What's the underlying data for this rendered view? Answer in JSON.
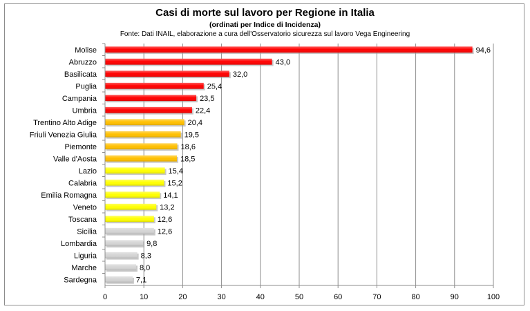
{
  "chart_data": {
    "type": "bar",
    "orientation": "horizontal",
    "title": "Casi di morte sul lavoro per Regione in Italia",
    "subtitle": "(ordinati per Indice di Incidenza)",
    "source": "Fonte: Dati INAIL, elaborazione a cura dell'Osservatorio sicurezza sul lavoro Vega Engineering",
    "xlim": [
      0,
      100
    ],
    "xticks": [
      0,
      10,
      20,
      30,
      40,
      50,
      60,
      70,
      80,
      90,
      100
    ],
    "grid": true,
    "bars": [
      {
        "category": "Molise",
        "value": 94.6,
        "label": "94,6",
        "color": "#ff0000"
      },
      {
        "category": "Abruzzo",
        "value": 43.0,
        "label": "43,0",
        "color": "#ff0000"
      },
      {
        "category": "Basilicata",
        "value": 32.0,
        "label": "32,0",
        "color": "#ff0000"
      },
      {
        "category": "Puglia",
        "value": 25.4,
        "label": "25,4",
        "color": "#ff0000"
      },
      {
        "category": "Campania",
        "value": 23.5,
        "label": "23,5",
        "color": "#ff0000"
      },
      {
        "category": "Umbria",
        "value": 22.4,
        "label": "22,4",
        "color": "#ff0000"
      },
      {
        "category": "Trentino Alto Adige",
        "value": 20.4,
        "label": "20,4",
        "color": "#ffc000"
      },
      {
        "category": "Friuli Venezia Giulia",
        "value": 19.5,
        "label": "19,5",
        "color": "#ffc000"
      },
      {
        "category": "Piemonte",
        "value": 18.6,
        "label": "18,6",
        "color": "#ffc000"
      },
      {
        "category": "Valle d'Aosta",
        "value": 18.5,
        "label": "18,5",
        "color": "#ffc000"
      },
      {
        "category": "Lazio",
        "value": 15.4,
        "label": "15,4",
        "color": "#ffff00"
      },
      {
        "category": "Calabria",
        "value": 15.2,
        "label": "15,2",
        "color": "#ffff00"
      },
      {
        "category": "Emilia Romagna",
        "value": 14.1,
        "label": "14,1",
        "color": "#ffff00"
      },
      {
        "category": "Veneto",
        "value": 13.2,
        "label": "13,2",
        "color": "#ffff00"
      },
      {
        "category": "Toscana",
        "value": 12.6,
        "label": "12,6",
        "color": "#ffff00"
      },
      {
        "category": "Sicilia",
        "value": 12.6,
        "label": "12,6",
        "color": "#d4d4d4"
      },
      {
        "category": "Lombardia",
        "value": 9.8,
        "label": "9,8",
        "color": "#d4d4d4"
      },
      {
        "category": "Liguria",
        "value": 8.3,
        "label": "8,3",
        "color": "#d4d4d4"
      },
      {
        "category": "Marche",
        "value": 8.0,
        "label": "8,0",
        "color": "#d4d4d4"
      },
      {
        "category": "Sardegna",
        "value": 7.1,
        "label": "7,1",
        "color": "#d4d4d4"
      }
    ]
  }
}
